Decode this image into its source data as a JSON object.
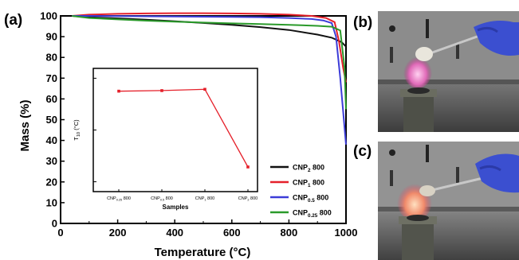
{
  "panels": {
    "a": "(a)",
    "b": "(b)",
    "c": "(c)"
  },
  "chart_data": [
    {
      "type": "line",
      "xlabel": "Temperature (°C)",
      "ylabel": "Mass (%)",
      "xlim": [
        0,
        1000
      ],
      "ylim": [
        0,
        100
      ],
      "xticks": [
        "0",
        "200",
        "400",
        "600",
        "800",
        "1000"
      ],
      "yticks": [
        "0",
        "10",
        "20",
        "30",
        "40",
        "50",
        "60",
        "70",
        "80",
        "90",
        "100"
      ],
      "legend_position": "bottom-right",
      "series": [
        {
          "name": "CNP",
          "sub": "2",
          "suffix": " 800",
          "color": "#111111",
          "x": [
            40,
            100,
            200,
            300,
            400,
            500,
            600,
            700,
            800,
            900,
            950,
            985,
            1000
          ],
          "y": [
            100,
            99.3,
            98.8,
            98.2,
            97.4,
            96.6,
            95.7,
            94.6,
            93.2,
            91.0,
            89.5,
            87.3,
            85.2
          ]
        },
        {
          "name": "CNP",
          "sub": "1",
          "suffix": " 800",
          "color": "#e5202a",
          "x": [
            40,
            100,
            200,
            300,
            400,
            500,
            600,
            700,
            800,
            880,
            930,
            960,
            975,
            990,
            1000
          ],
          "y": [
            100,
            100.6,
            101.0,
            101.2,
            101.3,
            101.3,
            101.2,
            101.0,
            100.6,
            100.0,
            99.0,
            97.0,
            88,
            75,
            68
          ]
        },
        {
          "name": "CNP",
          "sub": "0.5",
          "suffix": " 800",
          "color": "#3c3cd8",
          "x": [
            40,
            100,
            200,
            300,
            400,
            500,
            600,
            700,
            800,
            880,
            920,
            950,
            965,
            980,
            1000
          ],
          "y": [
            100,
            100.0,
            99.9,
            99.8,
            99.7,
            99.6,
            99.5,
            99.4,
            99.0,
            98.5,
            97.8,
            96.5,
            90,
            70,
            38
          ]
        },
        {
          "name": "CNP",
          "sub": "0.25",
          "suffix": " 800",
          "color": "#2a9a2a",
          "x": [
            40,
            100,
            200,
            300,
            400,
            500,
            600,
            700,
            800,
            900,
            950,
            980,
            995,
            1000
          ],
          "y": [
            100,
            99.0,
            98.3,
            97.7,
            97.2,
            96.8,
            96.4,
            96.1,
            95.7,
            95.2,
            94.8,
            93.0,
            75,
            55
          ]
        }
      ]
    },
    {
      "type": "line",
      "xlabel": "Samples",
      "ylabel": "T",
      "ylabel_sub": "10",
      "ylabel_suffix": " (°C)",
      "ylim": [
        300,
        960
      ],
      "yticks": [
        "",
        "",
        ""
      ],
      "categories": [
        {
          "name": "CNP",
          "sub": "0.25",
          "suffix": " 800"
        },
        {
          "name": "CNP",
          "sub": "0.5",
          "suffix": " 800"
        },
        {
          "name": "CNP",
          "sub": "1",
          "suffix": " 800"
        },
        {
          "name": "CNP",
          "sub": "2",
          "suffix": " 800"
        }
      ],
      "values": [
        838,
        841,
        848,
        432
      ],
      "color": "#e5202a"
    }
  ],
  "photos": [
    {
      "id": "b",
      "label": "(b)"
    },
    {
      "id": "c",
      "label": "(c)"
    }
  ]
}
